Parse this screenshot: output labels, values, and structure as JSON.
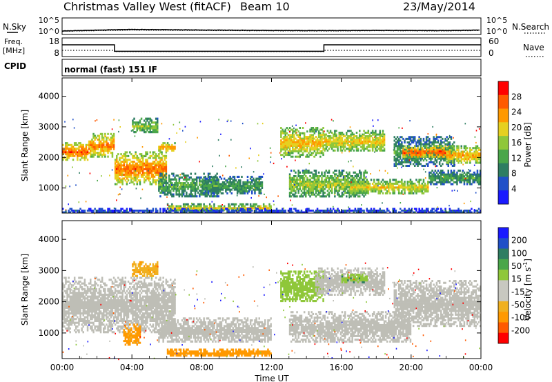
{
  "header": {
    "station": "Christmas Valley West (fitACF)",
    "beam": "Beam 10",
    "date": "23/May/2014"
  },
  "noise_panel": {
    "left_label": "N.Sky",
    "right_label": "N.Search",
    "tick_top": "10^5",
    "tick_bottom": "10^0"
  },
  "freq_panel": {
    "left_label_1": "Freq.",
    "left_label_2": "[MHz]",
    "left_tick_top": "18",
    "left_tick_bottom": "8",
    "right_label": "Nave",
    "right_tick_top": "60",
    "right_tick_bottom": "0",
    "cpid_label": "CPID",
    "cpid_value": "normal (fast) 151 IF"
  },
  "x_axis": {
    "label": "Time UT",
    "ticks": [
      "00:00",
      "04:00",
      "08:00",
      "12:00",
      "16:00",
      "20:00",
      "00:00"
    ]
  },
  "colors": {
    "power_scale": [
      "#1a1aff",
      "#2050c8",
      "#2e7d62",
      "#4aa64a",
      "#8fc73a",
      "#e6d020",
      "#ff9900",
      "#ff5a00",
      "#ff0000"
    ],
    "velocity_scale": [
      "#1a1aff",
      "#2050c8",
      "#2e7d62",
      "#4aa64a",
      "#8fc73a",
      "#c8c8c0",
      "#c8c8c0",
      "#f0b020",
      "#ff9900",
      "#ff5a00",
      "#ff0000"
    ],
    "ground_scatter": "#bebeb6"
  },
  "chart_data": [
    {
      "type": "line",
      "panel": "noise",
      "x_unit": "hours UT",
      "x": [
        0,
        2,
        4,
        6,
        8,
        10,
        12,
        14,
        16,
        18,
        20,
        22,
        24
      ],
      "series": [
        {
          "name": "N.Sky",
          "values": [
            10,
            18,
            30,
            25,
            20,
            18,
            15,
            14,
            14,
            16,
            15,
            14,
            20
          ]
        },
        {
          "name": "N.Search",
          "values": [
            8,
            12,
            18,
            16,
            14,
            12,
            11,
            10,
            10,
            12,
            11,
            10,
            14
          ]
        }
      ],
      "ylim": [
        1,
        100000
      ],
      "yscale": "log"
    },
    {
      "type": "line",
      "panel": "frequency",
      "segments": [
        {
          "start": 0,
          "end": 3,
          "freq_mhz": 14.3,
          "nave": 20
        },
        {
          "start": 3,
          "end": 15,
          "freq_mhz": 10.8,
          "nave": 16
        },
        {
          "start": 15,
          "end": 24,
          "freq_mhz": 14.3,
          "nave": 20
        }
      ],
      "ylim_freq": [
        8,
        18
      ],
      "ylim_nave": [
        0,
        60
      ]
    },
    {
      "type": "heatmap",
      "panel": "power",
      "colorbar_label": "Power [dB]",
      "ylabel": "Slant Range [km]",
      "y_ticks": [
        1000,
        2000,
        3000,
        4000
      ],
      "xlim": [
        0,
        24
      ],
      "ylim": [
        180,
        4600
      ],
      "colorbar_ticks": [
        "4",
        "8",
        "12",
        "16",
        "20",
        "24",
        "28"
      ],
      "colorbar_range": [
        0,
        32
      ],
      "regions": [
        {
          "t0": 0.0,
          "t1": 1.5,
          "r0": 1900,
          "r1": 2500,
          "p": 27
        },
        {
          "t0": 1.5,
          "t1": 3.0,
          "r0": 2000,
          "r1": 2800,
          "p": 25
        },
        {
          "t0": 3.0,
          "t1": 6.0,
          "r0": 1100,
          "r1": 2200,
          "p": 26
        },
        {
          "t0": 4.0,
          "t1": 5.5,
          "r0": 2800,
          "r1": 3300,
          "p": 16
        },
        {
          "t0": 5.5,
          "t1": 6.5,
          "r0": 2200,
          "r1": 2500,
          "p": 24
        },
        {
          "t0": 5.5,
          "t1": 9.0,
          "r0": 700,
          "r1": 1500,
          "p": 13
        },
        {
          "t0": 8.0,
          "t1": 11.5,
          "r0": 800,
          "r1": 1400,
          "p": 12
        },
        {
          "t0": 6.0,
          "t1": 12.0,
          "r0": 250,
          "r1": 500,
          "p": 20
        },
        {
          "t0": 12.5,
          "t1": 15.0,
          "r0": 2000,
          "r1": 3000,
          "p": 22
        },
        {
          "t0": 13.0,
          "t1": 17.5,
          "r0": 700,
          "r1": 1600,
          "p": 17
        },
        {
          "t0": 15.0,
          "t1": 18.5,
          "r0": 2200,
          "r1": 2900,
          "p": 21
        },
        {
          "t0": 16.5,
          "t1": 21.0,
          "r0": 800,
          "r1": 1300,
          "p": 20
        },
        {
          "t0": 19.0,
          "t1": 22.5,
          "r0": 1700,
          "r1": 2700,
          "p": 12
        },
        {
          "t0": 19.5,
          "t1": 22.0,
          "r0": 2000,
          "r1": 2400,
          "p": 28
        },
        {
          "t0": 22.0,
          "t1": 24.0,
          "r0": 1800,
          "r1": 2400,
          "p": 23
        },
        {
          "t0": 21.0,
          "t1": 24.0,
          "r0": 1100,
          "r1": 1600,
          "p": 12
        },
        {
          "t0": 0.0,
          "t1": 24.0,
          "r0": 180,
          "r1": 350,
          "p": 6
        }
      ]
    },
    {
      "type": "heatmap",
      "panel": "velocity",
      "colorbar_label": "Velocity [m s^-1]",
      "ylabel": "Slant Range [km]",
      "y_ticks": [
        1000,
        2000,
        3000,
        4000
      ],
      "xlim": [
        0,
        24
      ],
      "ylim": [
        180,
        4600
      ],
      "colorbar_ticks": [
        "200",
        "100",
        "50",
        "15",
        "-15",
        "-50",
        "-100",
        "-200"
      ],
      "regions": [
        {
          "t0": 0.0,
          "t1": 6.5,
          "r0": 1000,
          "r1": 2800,
          "v": 0,
          "gs": true
        },
        {
          "t0": 3.5,
          "t1": 4.5,
          "r0": 600,
          "r1": 1300,
          "v": -60
        },
        {
          "t0": 4.0,
          "t1": 5.5,
          "r0": 2800,
          "r1": 3300,
          "v": -40
        },
        {
          "t0": 5.5,
          "t1": 12.0,
          "r0": 700,
          "r1": 1500,
          "v": 0,
          "gs": true
        },
        {
          "t0": 6.0,
          "t1": 12.0,
          "r0": 250,
          "r1": 500,
          "v": -70
        },
        {
          "t0": 12.5,
          "t1": 15.0,
          "r0": 2000,
          "r1": 3000,
          "v": 30
        },
        {
          "t0": 13.0,
          "t1": 20.0,
          "r0": 700,
          "r1": 1700,
          "v": 0,
          "gs": true
        },
        {
          "t0": 14.5,
          "t1": 18.5,
          "r0": 2200,
          "r1": 3100,
          "v": 0,
          "gs": true
        },
        {
          "t0": 19.0,
          "t1": 24.0,
          "r0": 1200,
          "r1": 2700,
          "v": 0,
          "gs": true
        },
        {
          "t0": 16.0,
          "t1": 17.5,
          "r0": 2600,
          "r1": 2900,
          "v": 40
        }
      ]
    }
  ],
  "power_axis": {
    "label": "Power [dB]"
  },
  "velocity_axis": {
    "label_text": "Velocity [m s",
    "label_sup": "-1",
    "label_end": "]"
  },
  "range_axis": {
    "label": "Slant Range [km]",
    "ticks": [
      "1000",
      "2000",
      "3000",
      "4000"
    ]
  }
}
